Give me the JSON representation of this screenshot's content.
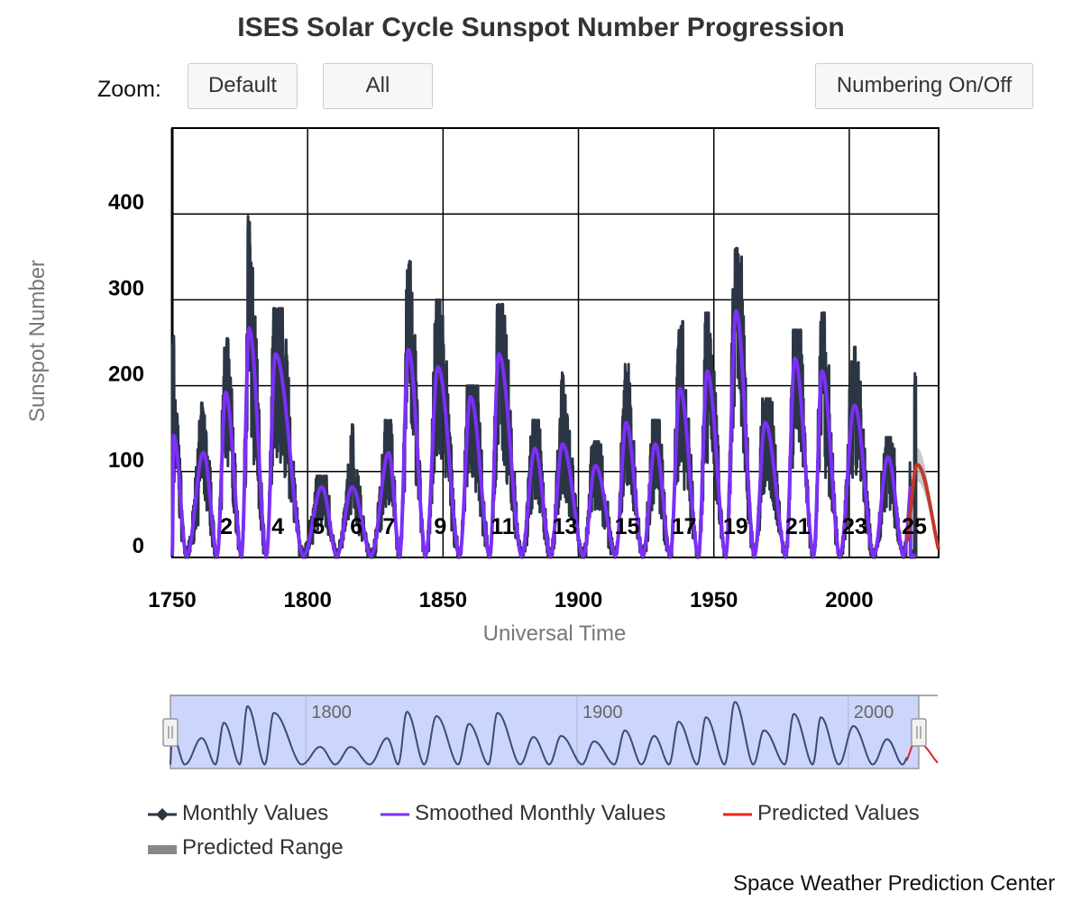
{
  "title": "ISES Solar Cycle Sunspot Number Progression",
  "zoom": {
    "label": "Zoom:",
    "default_label": "Default",
    "all_label": "All"
  },
  "numbering_label": "Numbering On/Off",
  "credit": "Space Weather Prediction Center",
  "colors": {
    "monthly": "#2b3544",
    "smoothed": "#7b2ff7",
    "predicted": "#c0392b",
    "predicted_range": "#bbbbbb",
    "navigator_fill": "#ccd5fb",
    "navigator_line": "#3b4a7a"
  },
  "chart_data": {
    "type": "line",
    "title": "ISES Solar Cycle Sunspot Number Progression",
    "xlabel": "Universal Time",
    "ylabel": "Sunspot Number",
    "xlim": [
      1750,
      2033
    ],
    "ylim": [
      0,
      500
    ],
    "x_ticks": [
      "1750",
      "1800",
      "1850",
      "1900",
      "1950",
      "2000"
    ],
    "y_ticks": [
      "0",
      "100",
      "200",
      "300",
      "400"
    ],
    "grid": true,
    "legend_position": "bottom",
    "legend": [
      "Monthly Values",
      "Smoothed Monthly Values",
      "Predicted Values",
      "Predicted Range"
    ],
    "cycle_labels": [
      {
        "label": "2",
        "x": 1770
      },
      {
        "label": "4",
        "x": 1789
      },
      {
        "label": "5",
        "x": 1804
      },
      {
        "label": "6",
        "x": 1818
      },
      {
        "label": "7",
        "x": 1830
      },
      {
        "label": "9",
        "x": 1849
      },
      {
        "label": "11",
        "x": 1872
      },
      {
        "label": "13",
        "x": 1895
      },
      {
        "label": "15",
        "x": 1918
      },
      {
        "label": "17",
        "x": 1939
      },
      {
        "label": "19",
        "x": 1958
      },
      {
        "label": "21",
        "x": 1981
      },
      {
        "label": "23",
        "x": 2002
      },
      {
        "label": "25",
        "x": 2024
      }
    ],
    "cycles": [
      {
        "start": 1750.0,
        "max_year": 1750.5,
        "peak": 140,
        "max_monthly": 260
      },
      {
        "start": 1755.2,
        "max_year": 1761.5,
        "peak": 120,
        "max_monthly": 180
      },
      {
        "start": 1766.5,
        "max_year": 1769.7,
        "peak": 190,
        "max_monthly": 255
      },
      {
        "start": 1775.5,
        "max_year": 1778.4,
        "peak": 265,
        "max_monthly": 400
      },
      {
        "start": 1784.7,
        "max_year": 1788.1,
        "peak": 235,
        "max_monthly": 290
      },
      {
        "start": 1798.3,
        "max_year": 1805.2,
        "peak": 80,
        "max_monthly": 95
      },
      {
        "start": 1810.6,
        "max_year": 1816.4,
        "peak": 80,
        "max_monthly": 155
      },
      {
        "start": 1823.3,
        "max_year": 1829.9,
        "peak": 120,
        "max_monthly": 160
      },
      {
        "start": 1833.9,
        "max_year": 1837.2,
        "peak": 240,
        "max_monthly": 345
      },
      {
        "start": 1843.5,
        "max_year": 1848.1,
        "peak": 220,
        "max_monthly": 300
      },
      {
        "start": 1856.0,
        "max_year": 1860.1,
        "peak": 185,
        "max_monthly": 200
      },
      {
        "start": 1867.2,
        "max_year": 1870.6,
        "peak": 235,
        "max_monthly": 295
      },
      {
        "start": 1878.9,
        "max_year": 1883.9,
        "peak": 125,
        "max_monthly": 160
      },
      {
        "start": 1889.6,
        "max_year": 1894.1,
        "peak": 130,
        "max_monthly": 220
      },
      {
        "start": 1901.7,
        "max_year": 1906.2,
        "peak": 105,
        "max_monthly": 135
      },
      {
        "start": 1913.6,
        "max_year": 1917.6,
        "peak": 155,
        "max_monthly": 225
      },
      {
        "start": 1923.6,
        "max_year": 1928.4,
        "peak": 130,
        "max_monthly": 160
      },
      {
        "start": 1933.8,
        "max_year": 1937.4,
        "peak": 195,
        "max_monthly": 275
      },
      {
        "start": 1944.2,
        "max_year": 1947.5,
        "peak": 215,
        "max_monthly": 285
      },
      {
        "start": 1954.3,
        "max_year": 1958.2,
        "peak": 285,
        "max_monthly": 360
      },
      {
        "start": 1964.9,
        "max_year": 1968.9,
        "peak": 155,
        "max_monthly": 185
      },
      {
        "start": 1976.5,
        "max_year": 1979.9,
        "peak": 230,
        "max_monthly": 265
      },
      {
        "start": 1986.8,
        "max_year": 1989.9,
        "peak": 215,
        "max_monthly": 285
      },
      {
        "start": 1996.4,
        "max_year": 2001.9,
        "peak": 175,
        "max_monthly": 245
      },
      {
        "start": 2008.9,
        "max_year": 2014.3,
        "peak": 115,
        "max_monthly": 140
      },
      {
        "start": 2019.9,
        "max_year": 2024.5,
        "peak": 138,
        "max_monthly": 215
      }
    ],
    "predicted": {
      "start": 2020.0,
      "max_year": 2025.0,
      "peak": 108,
      "range_high": 128,
      "end": 2033
    },
    "navigator": {
      "labels": [
        "1800",
        "1900",
        "2000"
      ],
      "selected_range": [
        1750,
        2026
      ]
    }
  }
}
